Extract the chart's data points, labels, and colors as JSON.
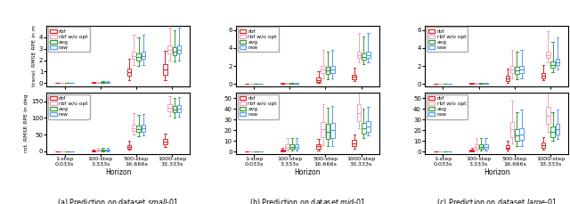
{
  "columns": [
    "small-01",
    "mid-01",
    "large-01"
  ],
  "col_labels_parts": [
    [
      "(a) Prediction on dataset ",
      "small-01"
    ],
    [
      "(b) Prediction on dataset ",
      "mid-01"
    ],
    [
      "(c) Prediction on dataset ",
      "large-01"
    ]
  ],
  "horizons": [
    "1-step\n0.033s",
    "100-step\n3.333s",
    "500-step\n16.666s",
    "1000-step\n33.333s"
  ],
  "series_labels": [
    "rbf",
    "rbf w/o opt",
    "avg",
    "raw"
  ],
  "series_keys": [
    "rbf",
    "rbf_wo_opt",
    "avg",
    "raw"
  ],
  "colors": [
    "#d62728",
    "#f4a0c0",
    "#2ca02c",
    "#5599ee"
  ],
  "transl_ylims": {
    "small-01": [
      -0.3,
      5.0
    ],
    "mid-01": [
      -0.3,
      6.5
    ],
    "large-01": [
      -0.3,
      6.5
    ]
  },
  "transl_yticks": {
    "small-01": [
      0,
      1,
      2,
      3,
      4
    ],
    "mid-01": [
      0,
      2,
      4,
      6
    ],
    "large-01": [
      0,
      2,
      4,
      6
    ]
  },
  "rot_ylims": {
    "small-01": [
      -8,
      175
    ],
    "mid-01": [
      -2,
      55
    ],
    "large-01": [
      -2,
      55
    ]
  },
  "rot_yticks": {
    "small-01": [
      0,
      50,
      100,
      150
    ],
    "mid-01": [
      0,
      10,
      20,
      30,
      40,
      50
    ],
    "large-01": [
      0,
      10,
      20,
      30,
      40,
      50
    ]
  },
  "transl_data": {
    "small-01": {
      "rbf": [
        [
          0,
          0,
          0,
          0,
          0.005
        ],
        [
          0.02,
          0.04,
          0.06,
          0.08,
          0.13
        ],
        [
          0.25,
          0.65,
          0.95,
          1.25,
          2.1
        ],
        [
          0.3,
          0.75,
          1.2,
          1.65,
          2.8
        ]
      ],
      "rbf_wo_opt": [
        [
          0,
          0,
          0,
          0,
          0.005
        ],
        [
          0.02,
          0.04,
          0.06,
          0.08,
          0.13
        ],
        [
          1.6,
          2.1,
          2.35,
          2.7,
          4.2
        ],
        [
          2.0,
          2.55,
          2.85,
          3.25,
          4.8
        ]
      ],
      "avg": [
        [
          0,
          0,
          0,
          0,
          0.005
        ],
        [
          0.02,
          0.04,
          0.065,
          0.09,
          0.16
        ],
        [
          1.5,
          2.0,
          2.25,
          2.6,
          4.0
        ],
        [
          1.85,
          2.4,
          2.7,
          3.1,
          4.6
        ]
      ],
      "raw": [
        [
          0,
          0,
          0,
          0,
          0.005
        ],
        [
          0.02,
          0.04,
          0.065,
          0.09,
          0.16
        ],
        [
          1.6,
          2.1,
          2.35,
          2.7,
          4.2
        ],
        [
          2.0,
          2.55,
          2.85,
          3.25,
          4.8
        ]
      ]
    },
    "mid-01": {
      "rbf": [
        [
          0,
          0,
          0,
          0,
          0.005
        ],
        [
          0.02,
          0.04,
          0.06,
          0.08,
          0.13
        ],
        [
          0.1,
          0.25,
          0.45,
          0.7,
          1.4
        ],
        [
          0.3,
          0.55,
          0.8,
          1.05,
          1.8
        ]
      ],
      "rbf_wo_opt": [
        [
          0,
          0,
          0,
          0,
          0.005
        ],
        [
          0.02,
          0.04,
          0.06,
          0.08,
          0.13
        ],
        [
          0.6,
          1.2,
          1.6,
          2.0,
          3.8
        ],
        [
          2.4,
          2.9,
          3.2,
          3.6,
          5.7
        ]
      ],
      "avg": [
        [
          0,
          0,
          0,
          0,
          0.005
        ],
        [
          0.02,
          0.04,
          0.065,
          0.09,
          0.16
        ],
        [
          0.5,
          1.1,
          1.5,
          1.9,
          3.6
        ],
        [
          2.2,
          2.7,
          3.0,
          3.4,
          5.3
        ]
      ],
      "raw": [
        [
          0,
          0,
          0,
          0,
          0.005
        ],
        [
          0.02,
          0.04,
          0.065,
          0.09,
          0.16
        ],
        [
          0.6,
          1.2,
          1.6,
          2.0,
          3.8
        ],
        [
          2.4,
          2.9,
          3.2,
          3.6,
          5.7
        ]
      ]
    },
    "large-01": {
      "rbf": [
        [
          0,
          0,
          0,
          0,
          0.005
        ],
        [
          0.02,
          0.04,
          0.06,
          0.08,
          0.13
        ],
        [
          0.15,
          0.35,
          0.6,
          0.9,
          1.7
        ],
        [
          0.4,
          0.65,
          0.95,
          1.25,
          2.1
        ]
      ],
      "rbf_wo_opt": [
        [
          0,
          0,
          0,
          0,
          0.005
        ],
        [
          0.02,
          0.04,
          0.06,
          0.08,
          0.13
        ],
        [
          0.6,
          1.2,
          1.6,
          2.0,
          3.8
        ],
        [
          2.4,
          2.9,
          3.2,
          3.6,
          5.9
        ]
      ],
      "avg": [
        [
          0,
          0,
          0,
          0,
          0.005
        ],
        [
          0.02,
          0.04,
          0.065,
          0.09,
          0.16
        ],
        [
          0.5,
          1.1,
          1.5,
          1.9,
          3.6
        ],
        [
          1.3,
          1.8,
          2.1,
          2.5,
          4.7
        ]
      ],
      "raw": [
        [
          0,
          0,
          0,
          0,
          0.005
        ],
        [
          0.02,
          0.04,
          0.065,
          0.09,
          0.16
        ],
        [
          0.6,
          1.2,
          1.6,
          2.0,
          3.8
        ],
        [
          1.6,
          2.1,
          2.4,
          2.8,
          5.2
        ]
      ]
    }
  },
  "rot_data": {
    "small-01": {
      "rbf": [
        [
          0,
          0,
          0,
          0,
          0.05
        ],
        [
          0.2,
          0.6,
          1.2,
          2.0,
          3.8
        ],
        [
          5,
          9,
          14,
          19,
          33
        ],
        [
          14,
          22,
          29,
          36,
          52
        ]
      ],
      "rbf_wo_opt": [
        [
          0,
          0,
          0,
          0,
          0.05
        ],
        [
          0.5,
          1.5,
          3.2,
          5.8,
          10.5
        ],
        [
          50,
          60,
          70,
          80,
          114
        ],
        [
          106,
          120,
          130,
          140,
          165
        ]
      ],
      "avg": [
        [
          0,
          0,
          0,
          0,
          0.05
        ],
        [
          0.5,
          1.5,
          3.2,
          5.8,
          10.5
        ],
        [
          46,
          57,
          67,
          77,
          110
        ],
        [
          102,
          116,
          126,
          136,
          160
        ]
      ],
      "raw": [
        [
          0,
          0,
          0,
          0,
          0.05
        ],
        [
          0.5,
          1.5,
          3.2,
          5.8,
          10.5
        ],
        [
          47,
          59,
          69,
          79,
          112
        ],
        [
          104,
          118,
          128,
          138,
          162
        ]
      ]
    },
    "mid-01": {
      "rbf": [
        [
          0,
          0,
          0,
          0,
          0.05
        ],
        [
          0.2,
          0.6,
          1.2,
          2.0,
          3.8
        ],
        [
          1.5,
          3,
          5,
          7,
          12
        ],
        [
          3,
          5,
          8,
          11,
          16
        ]
      ],
      "rbf_wo_opt": [
        [
          0,
          0,
          0,
          0,
          0.05
        ],
        [
          1.2,
          2.8,
          4.5,
          6.8,
          13.0
        ],
        [
          6,
          14,
          21,
          28,
          44
        ],
        [
          22,
          29,
          36,
          44,
          58
        ]
      ],
      "avg": [
        [
          0,
          0,
          0,
          0,
          0.05
        ],
        [
          1.2,
          2.8,
          4.5,
          6.8,
          13.0
        ],
        [
          5,
          12,
          19,
          26,
          41
        ],
        [
          13,
          17,
          22,
          27,
          40
        ]
      ],
      "raw": [
        [
          0,
          0,
          0,
          0,
          0.05
        ],
        [
          1.2,
          2.8,
          4.5,
          6.8,
          13.0
        ],
        [
          5,
          13,
          20,
          27,
          43
        ],
        [
          15,
          19,
          24,
          29,
          42
        ]
      ]
    },
    "large-01": {
      "rbf": [
        [
          0,
          0,
          0,
          0,
          0.05
        ],
        [
          0.2,
          0.6,
          1.2,
          2.0,
          3.8
        ],
        [
          1,
          2.5,
          4,
          6,
          10
        ],
        [
          2,
          4,
          6,
          9,
          14
        ]
      ],
      "rbf_wo_opt": [
        [
          0,
          0,
          0,
          0,
          0.05
        ],
        [
          1.2,
          2.8,
          4.5,
          6.8,
          13.0
        ],
        [
          8,
          14,
          21,
          28,
          48
        ],
        [
          19,
          26,
          34,
          42,
          56
        ]
      ],
      "avg": [
        [
          0,
          0,
          0,
          0,
          0.05
        ],
        [
          1.2,
          2.8,
          4.5,
          6.8,
          13.0
        ],
        [
          5,
          10,
          15,
          21,
          37
        ],
        [
          10,
          14,
          19,
          24,
          37
        ]
      ],
      "raw": [
        [
          0,
          0,
          0,
          0,
          0.05
        ],
        [
          1.2,
          2.8,
          4.5,
          6.8,
          13.0
        ],
        [
          5,
          11,
          16,
          22,
          39
        ],
        [
          12,
          16,
          21,
          26,
          39
        ]
      ]
    }
  }
}
